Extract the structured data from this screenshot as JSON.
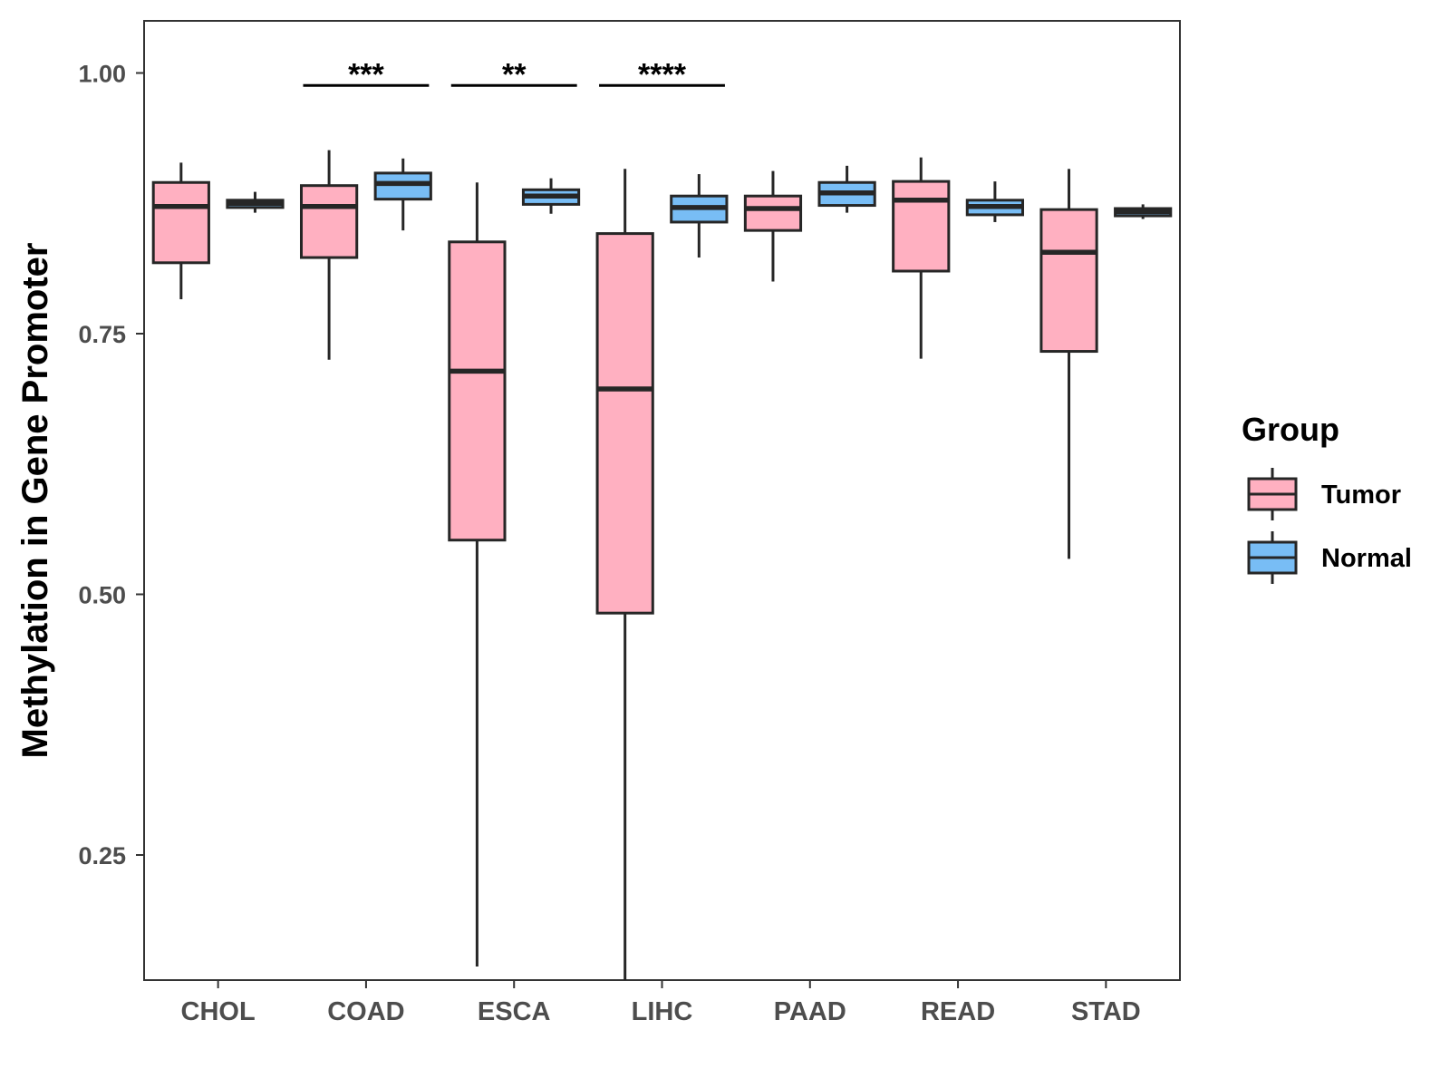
{
  "chart_data": {
    "type": "boxplot",
    "title": "",
    "xlabel": "",
    "ylabel": "Methylation in Gene Promoter",
    "ylim": [
      0.13,
      1.05
    ],
    "yticks": [
      0.25,
      0.5,
      0.75,
      1.0
    ],
    "ytick_labels": [
      "0.25",
      "0.50",
      "0.75",
      "1.00"
    ],
    "categories": [
      "CHOL",
      "COAD",
      "ESCA",
      "LIHC",
      "PAAD",
      "READ",
      "STAD"
    ],
    "legend": {
      "title": "Group",
      "position": "right",
      "entries": [
        {
          "name": "Tumor",
          "color": "#ffb0c1"
        },
        {
          "name": "Normal",
          "color": "#78bdf5"
        }
      ]
    },
    "series": [
      {
        "name": "Tumor",
        "color": "#ffb0c1",
        "boxes": [
          {
            "min": 0.783,
            "q1": 0.818,
            "median": 0.872,
            "q3": 0.895,
            "max": 0.914
          },
          {
            "min": 0.725,
            "q1": 0.823,
            "median": 0.872,
            "q3": 0.892,
            "max": 0.926
          },
          {
            "min": 0.143,
            "q1": 0.552,
            "median": 0.714,
            "q3": 0.838,
            "max": 0.895
          },
          {
            "min": 0.13,
            "q1": 0.482,
            "median": 0.697,
            "q3": 0.846,
            "max": 0.908
          },
          {
            "min": 0.8,
            "q1": 0.849,
            "median": 0.87,
            "q3": 0.882,
            "max": 0.906
          },
          {
            "min": 0.726,
            "q1": 0.81,
            "median": 0.878,
            "q3": 0.896,
            "max": 0.919
          },
          {
            "min": 0.534,
            "q1": 0.733,
            "median": 0.828,
            "q3": 0.869,
            "max": 0.908
          }
        ]
      },
      {
        "name": "Normal",
        "color": "#78bdf5",
        "boxes": [
          {
            "min": 0.866,
            "q1": 0.871,
            "median": 0.875,
            "q3": 0.878,
            "max": 0.886
          },
          {
            "min": 0.849,
            "q1": 0.879,
            "median": 0.894,
            "q3": 0.904,
            "max": 0.918
          },
          {
            "min": 0.865,
            "q1": 0.874,
            "median": 0.882,
            "q3": 0.888,
            "max": 0.899
          },
          {
            "min": 0.823,
            "q1": 0.857,
            "median": 0.871,
            "q3": 0.882,
            "max": 0.903
          },
          {
            "min": 0.866,
            "q1": 0.873,
            "median": 0.885,
            "q3": 0.895,
            "max": 0.911
          },
          {
            "min": 0.857,
            "q1": 0.864,
            "median": 0.872,
            "q3": 0.878,
            "max": 0.896
          },
          {
            "min": 0.86,
            "q1": 0.863,
            "median": 0.867,
            "q3": 0.87,
            "max": 0.874
          }
        ]
      }
    ],
    "annotations": [
      {
        "category": "COAD",
        "label": "***",
        "y": 0.988
      },
      {
        "category": "ESCA",
        "label": "**",
        "y": 0.988
      },
      {
        "category": "LIHC",
        "label": "****",
        "y": 0.988
      }
    ]
  }
}
